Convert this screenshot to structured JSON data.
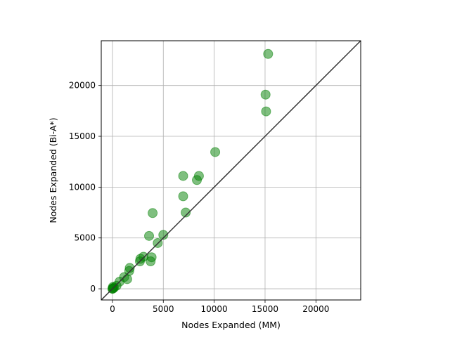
{
  "chart_data": {
    "type": "scatter",
    "title": "",
    "xlabel": "Nodes Expanded (MM)",
    "ylabel": "Nodes Expanded (Bi-A*)",
    "xlim": [
      -1100,
      24400
    ],
    "ylim": [
      -1100,
      24400
    ],
    "xticks": [
      0,
      5000,
      10000,
      15000,
      20000
    ],
    "yticks": [
      0,
      5000,
      10000,
      15000,
      20000
    ],
    "grid": true,
    "reference_line": "y = x",
    "colors": {
      "points": "#008000",
      "reference_line": "#333333",
      "grid": "#b0b0b0"
    },
    "series": [
      {
        "points": [
          [
            15300,
            23100
          ],
          [
            15050,
            19100
          ],
          [
            15100,
            17450
          ],
          [
            10100,
            13450
          ],
          [
            6950,
            11100
          ],
          [
            8500,
            11100
          ],
          [
            8300,
            10700
          ],
          [
            6950,
            9100
          ],
          [
            7200,
            7500
          ],
          [
            3950,
            7450
          ],
          [
            3600,
            5200
          ],
          [
            5000,
            5300
          ],
          [
            4450,
            4500
          ],
          [
            3850,
            3100
          ],
          [
            3750,
            2700
          ],
          [
            2700,
            2700
          ],
          [
            3050,
            3150
          ],
          [
            2750,
            2950
          ],
          [
            1700,
            2050
          ],
          [
            1650,
            1750
          ],
          [
            1150,
            1150
          ],
          [
            1450,
            950
          ],
          [
            700,
            700
          ],
          [
            400,
            300
          ],
          [
            150,
            120
          ],
          [
            80,
            50
          ],
          [
            50,
            180
          ],
          [
            20,
            10
          ],
          [
            0,
            0
          ]
        ]
      }
    ]
  }
}
